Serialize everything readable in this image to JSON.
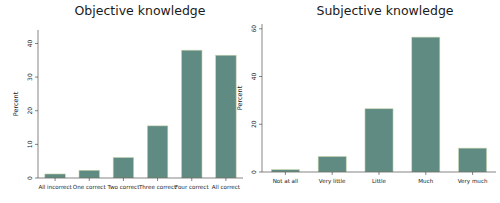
{
  "chart_data": [
    {
      "type": "bar",
      "title": "Objective knowledge",
      "y_label": "Percent",
      "categories": [
        "All incorrect",
        "One correct",
        "Two correct",
        "Three correct",
        "Four correct",
        "All correct"
      ],
      "values": [
        1.2,
        2.3,
        6.1,
        15.5,
        38,
        36.5
      ],
      "color": "#5f8b82",
      "ylim": [
        0,
        44
      ],
      "yticks": [
        0,
        10,
        20,
        30,
        40
      ],
      "grid": false
    },
    {
      "type": "bar",
      "title": "Subjective knowledge",
      "y_label": "Percent",
      "categories": [
        "Not at all",
        "Very little",
        "Little",
        "Much",
        "Very much"
      ],
      "values": [
        1,
        6.5,
        26.5,
        56.5,
        10
      ],
      "color": "#5f8b82",
      "ylim": [
        0,
        62
      ],
      "yticks": [
        0,
        20,
        40,
        60
      ],
      "grid": false
    }
  ]
}
